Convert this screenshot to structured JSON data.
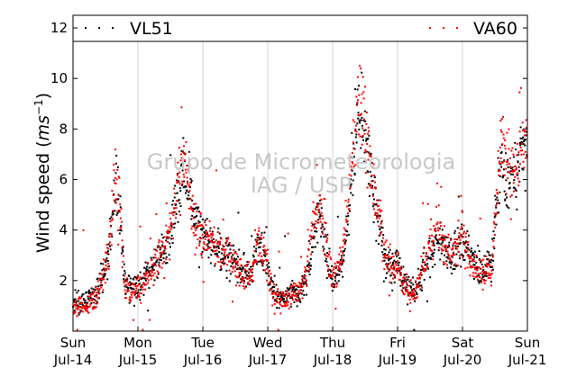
{
  "chart_data": {
    "type": "scatter",
    "ylabel": "Wind speed",
    "ylabel_unit_base": "ms",
    "ylabel_unit_exp": "−1",
    "ylim": [
      0,
      12.5
    ],
    "yticks": [
      2,
      4,
      6,
      8,
      10,
      12
    ],
    "xlim": [
      0,
      7
    ],
    "x_ticks": [
      {
        "x": 0,
        "day": "Sun",
        "date": "Jul-14"
      },
      {
        "x": 1,
        "day": "Mon",
        "date": "Jul-15"
      },
      {
        "x": 2,
        "day": "Tue",
        "date": "Jul-16"
      },
      {
        "x": 3,
        "day": "Wed",
        "date": "Jul-17"
      },
      {
        "x": 4,
        "day": "Thu",
        "date": "Jul-18"
      },
      {
        "x": 5,
        "day": "Fri",
        "date": "Jul-19"
      },
      {
        "x": 6,
        "day": "Sat",
        "date": "Jul-20"
      },
      {
        "x": 7,
        "day": "Sun",
        "date": "Jul-21"
      }
    ],
    "grid": "vertical",
    "legend_placement": "top",
    "watermark": [
      "Grupo de Micrometeorologia",
      "IAG / USP"
    ],
    "series": [
      {
        "name": "VL51",
        "color": "#000000",
        "profile": [
          [
            0.0,
            1.1
          ],
          [
            0.25,
            1.2
          ],
          [
            0.4,
            1.8
          ],
          [
            0.55,
            3.0
          ],
          [
            0.65,
            5.5
          ],
          [
            0.72,
            5.0
          ],
          [
            0.8,
            2.0
          ],
          [
            1.0,
            1.6
          ],
          [
            1.25,
            2.6
          ],
          [
            1.45,
            3.5
          ],
          [
            1.6,
            5.0
          ],
          [
            1.7,
            6.5
          ],
          [
            1.8,
            5.5
          ],
          [
            1.9,
            4.2
          ],
          [
            2.1,
            3.5
          ],
          [
            2.4,
            3.0
          ],
          [
            2.6,
            2.5
          ],
          [
            2.75,
            2.3
          ],
          [
            2.85,
            3.5
          ],
          [
            2.95,
            3.0
          ],
          [
            3.1,
            1.5
          ],
          [
            3.3,
            1.5
          ],
          [
            3.5,
            1.5
          ],
          [
            3.6,
            2.2
          ],
          [
            3.7,
            3.6
          ],
          [
            3.8,
            4.8
          ],
          [
            3.9,
            3.2
          ],
          [
            4.0,
            2.0
          ],
          [
            4.15,
            2.5
          ],
          [
            4.3,
            6.0
          ],
          [
            4.4,
            8.3
          ],
          [
            4.5,
            7.5
          ],
          [
            4.6,
            6.0
          ],
          [
            4.7,
            4.5
          ],
          [
            4.8,
            3.0
          ],
          [
            4.9,
            2.5
          ],
          [
            5.0,
            2.7
          ],
          [
            5.1,
            2.0
          ],
          [
            5.25,
            1.4
          ],
          [
            5.35,
            2.0
          ],
          [
            5.45,
            2.8
          ],
          [
            5.6,
            3.5
          ],
          [
            5.7,
            3.5
          ],
          [
            5.8,
            3.0
          ],
          [
            5.9,
            3.2
          ],
          [
            6.0,
            3.5
          ],
          [
            6.1,
            3.3
          ],
          [
            6.2,
            2.6
          ],
          [
            6.35,
            2.5
          ],
          [
            6.45,
            2.7
          ],
          [
            6.5,
            4.5
          ],
          [
            6.6,
            6.5
          ],
          [
            6.75,
            5.5
          ],
          [
            6.9,
            7.0
          ],
          [
            7.0,
            7.3
          ]
        ]
      },
      {
        "name": "VA60",
        "color": "#ff0000",
        "profile": [
          [
            0.0,
            0.9
          ],
          [
            0.25,
            1.1
          ],
          [
            0.4,
            1.7
          ],
          [
            0.55,
            3.2
          ],
          [
            0.65,
            6.0
          ],
          [
            0.72,
            5.0
          ],
          [
            0.8,
            1.8
          ],
          [
            1.0,
            1.5
          ],
          [
            1.25,
            2.5
          ],
          [
            1.45,
            3.6
          ],
          [
            1.6,
            5.2
          ],
          [
            1.7,
            6.8
          ],
          [
            1.8,
            5.5
          ],
          [
            1.9,
            4.0
          ],
          [
            2.1,
            3.6
          ],
          [
            2.4,
            3.0
          ],
          [
            2.6,
            2.3
          ],
          [
            2.75,
            2.3
          ],
          [
            2.85,
            3.6
          ],
          [
            2.95,
            3.0
          ],
          [
            3.1,
            1.3
          ],
          [
            3.3,
            1.3
          ],
          [
            3.5,
            1.6
          ],
          [
            3.6,
            2.4
          ],
          [
            3.7,
            4.2
          ],
          [
            3.8,
            5.0
          ],
          [
            3.9,
            3.3
          ],
          [
            4.0,
            2.0
          ],
          [
            4.15,
            3.0
          ],
          [
            4.3,
            6.5
          ],
          [
            4.4,
            9.5
          ],
          [
            4.5,
            8.0
          ],
          [
            4.6,
            6.0
          ],
          [
            4.7,
            4.5
          ],
          [
            4.8,
            3.2
          ],
          [
            4.9,
            2.5
          ],
          [
            5.0,
            2.6
          ],
          [
            5.1,
            1.8
          ],
          [
            5.25,
            1.2
          ],
          [
            5.35,
            2.2
          ],
          [
            5.45,
            3.0
          ],
          [
            5.6,
            4.0
          ],
          [
            5.7,
            3.8
          ],
          [
            5.8,
            3.0
          ],
          [
            5.9,
            3.3
          ],
          [
            6.0,
            3.8
          ],
          [
            6.1,
            3.0
          ],
          [
            6.2,
            2.4
          ],
          [
            6.35,
            2.3
          ],
          [
            6.45,
            2.6
          ],
          [
            6.5,
            4.5
          ],
          [
            6.6,
            7.5
          ],
          [
            6.75,
            6.0
          ],
          [
            6.9,
            7.2
          ],
          [
            7.0,
            7.6
          ]
        ]
      }
    ]
  }
}
